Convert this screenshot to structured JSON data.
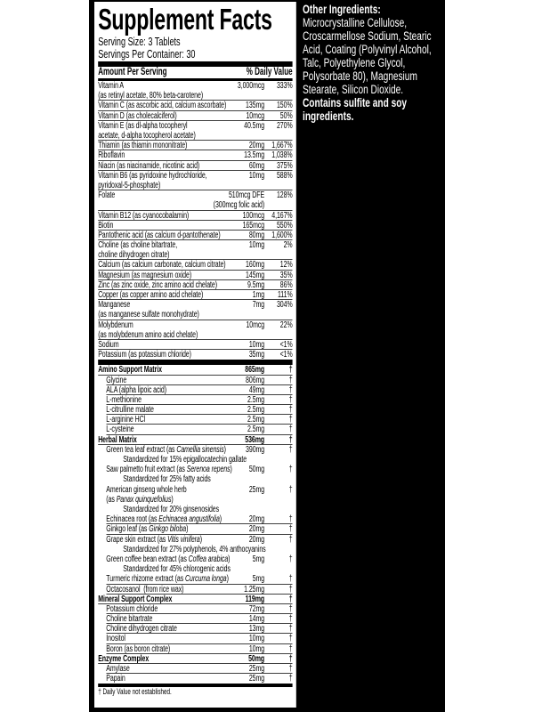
{
  "title": "Supplement Facts",
  "serving_size": "Serving Size: 3 Tablets",
  "servings_per_container": "Servings Per Container: 30",
  "header": {
    "amount": "Amount Per Serving",
    "dv": "% Daily Value"
  },
  "vitamins": [
    {
      "name": "Vitamin A\n(as retinyl acetate, 80% beta-carotene)",
      "amount": "3,000mcg",
      "dv": "333%",
      "lines": 2
    },
    {
      "name": "Vitamin C (as ascorbic acid, calcium ascorbate)",
      "amount": "135mg",
      "dv": "150%",
      "lines": 1
    },
    {
      "name": "Vitamin D (as cholecalciferol)",
      "amount": "10mcg",
      "dv": "50%",
      "lines": 1
    },
    {
      "name": "Vitamin E (as dl-alpha tocopheryl\nacetate, d-alpha tocopherol acetate)",
      "amount": "40.5mg",
      "dv": "270%",
      "lines": 2
    },
    {
      "name": "Thiamin (as thiamin mononitrate)",
      "amount": "20mg",
      "dv": "1,667%",
      "lines": 1
    },
    {
      "name": "Riboflavin",
      "amount": "13.5mg",
      "dv": "1,038%",
      "lines": 1
    },
    {
      "name": "Niacin (as niacinamide, nicotinic acid)",
      "amount": "60mg",
      "dv": "375%",
      "lines": 1
    },
    {
      "name": "Vitamin B6 (as pyridoxine hydrochloride,\npyridoxal-5-phosphate)",
      "amount": "10mg",
      "dv": "588%",
      "lines": 2
    },
    {
      "name": "Folate",
      "amount": "510mcg DFE\n(300mcg folic acid)",
      "dv": "128%",
      "lines": 2
    },
    {
      "name": "Vitamin B12 (as cyanocobalamin)",
      "amount": "100mcg",
      "dv": "4,167%",
      "lines": 1
    },
    {
      "name": "Biotin",
      "amount": "165mcg",
      "dv": "550%",
      "lines": 1
    },
    {
      "name": "Pantothenic acid (as calcium d-pantothenate)",
      "amount": "80mg",
      "dv": "1,600%",
      "lines": 1
    },
    {
      "name": "Choline (as choline bitartrate,\ncholine dihydrogen citrate)",
      "amount": "10mg",
      "dv": "2%",
      "lines": 2
    },
    {
      "name": "Calcium (as calcium carbonate, calcium citrate)",
      "amount": "160mg",
      "dv": "12%",
      "lines": 1
    },
    {
      "name": "Magnesium (as magnesium oxide)",
      "amount": "145mg",
      "dv": "35%",
      "lines": 1
    },
    {
      "name": "Zinc (as zinc oxide, zinc amino acid chelate)",
      "amount": "9.5mg",
      "dv": "86%",
      "lines": 1
    },
    {
      "name": "Copper (as copper amino acid chelate)",
      "amount": "1mg",
      "dv": "111%",
      "lines": 1
    },
    {
      "name": "Manganese\n(as manganese sulfate monohydrate)",
      "amount": "7mg",
      "dv": "304%",
      "lines": 2
    },
    {
      "name": "Molybdenum\n(as molybdenum amino acid chelate)",
      "amount": "10mcg",
      "dv": "22%",
      "lines": 2
    },
    {
      "name": "Sodium",
      "amount": "10mg",
      "dv": "<1%",
      "lines": 1
    },
    {
      "name": "Potassium (as potassium chloride)",
      "amount": "35mg",
      "dv": "<1%",
      "lines": 1
    }
  ],
  "blends": [
    {
      "type": "group",
      "name": "Amino Support Matrix",
      "amount": "865mg",
      "dv": "†"
    },
    {
      "type": "sub",
      "name": "Glycine",
      "amount": "806mg",
      "dv": "†"
    },
    {
      "type": "sub",
      "name": "ALA (alpha lipoic acid)",
      "amount": "49mg",
      "dv": "†"
    },
    {
      "type": "sub",
      "name": "L-methionine",
      "amount": "2.5mg",
      "dv": "†"
    },
    {
      "type": "sub",
      "name": "L-citrulline malate",
      "amount": "2.5mg",
      "dv": "†"
    },
    {
      "type": "sub",
      "name": "L-arginine HCl",
      "amount": "2.5mg",
      "dv": "†"
    },
    {
      "type": "sub",
      "name": "L-cysteine",
      "amount": "2.5mg",
      "dv": "†"
    },
    {
      "type": "group",
      "name": "Herbal Matrix",
      "amount": "536mg",
      "dv": "†"
    },
    {
      "type": "sub",
      "name": "Green tea leaf extract (as ",
      "italic": "Camellia sinensis",
      "name_end": ")",
      "amount": "390mg",
      "dv": "†",
      "nb": true
    },
    {
      "type": "std",
      "name": "Standardized for 15% epigallocatechin gallate"
    },
    {
      "type": "sub",
      "name": "Saw palmetto fruit extract (as ",
      "italic": "Serenoa repens",
      "name_end": ")",
      "amount": "50mg",
      "dv": "†",
      "nb": true
    },
    {
      "type": "std",
      "name": "Standardized for 25% fatty acids"
    },
    {
      "type": "sub",
      "name": "American ginseng whole herb\n(as ",
      "italic": "Panax quinquefolius",
      "name_end": ")",
      "amount": "25mg",
      "dv": "†",
      "lines": 2,
      "nb": true
    },
    {
      "type": "std",
      "name": "Standardized for 20% ginsenosides"
    },
    {
      "type": "sub",
      "name": "Echinacea root (as ",
      "italic": "Echinacea angustifolia",
      "name_end": ")",
      "amount": "20mg",
      "dv": "†"
    },
    {
      "type": "sub",
      "name": "Ginkgo leaf (as ",
      "italic": "Ginkgo biloba",
      "name_end": ")",
      "amount": "20mg",
      "dv": "†"
    },
    {
      "type": "sub",
      "name": "Grape skin extract (as ",
      "italic": "Vitis vinifera",
      "name_end": ")",
      "amount": "20mg",
      "dv": "†",
      "nb": true
    },
    {
      "type": "std",
      "name": "Standardized for 27% polyphenols, 4% anthocyanins"
    },
    {
      "type": "sub",
      "name": "Green coffee bean extract (as ",
      "italic": "Coffea arabica",
      "name_end": ")",
      "amount": "5mg",
      "dv": "†",
      "nb": true
    },
    {
      "type": "std",
      "name": "Standardized for 45% chlorogenic acids"
    },
    {
      "type": "sub",
      "name": "Turmeric rhizome extract (as ",
      "italic": "Curcuma longa",
      "name_end": ")",
      "amount": "5mg",
      "dv": "†"
    },
    {
      "type": "sub",
      "name": "Octacosanol  (from rice wax)",
      "amount": "1.25mg",
      "dv": "†"
    },
    {
      "type": "group",
      "name": "Mineral Support Complex",
      "amount": "119mg",
      "dv": "†"
    },
    {
      "type": "sub",
      "name": "Potassium chloride",
      "amount": "72mg",
      "dv": "†"
    },
    {
      "type": "sub",
      "name": "Choline bitartrate",
      "amount": "14mg",
      "dv": "†"
    },
    {
      "type": "sub",
      "name": "Choline dihydrogen citrate",
      "amount": "13mg",
      "dv": "†"
    },
    {
      "type": "sub",
      "name": "Inositol",
      "amount": "10mg",
      "dv": "†"
    },
    {
      "type": "sub",
      "name": "Boron (as boron citrate)",
      "amount": "10mg",
      "dv": "†"
    },
    {
      "type": "group",
      "name": "Enzyme Complex",
      "amount": "50mg",
      "dv": "†"
    },
    {
      "type": "sub",
      "name": "Amylase",
      "amount": "25mg",
      "dv": "†"
    },
    {
      "type": "sub",
      "name": "Papain",
      "amount": "25mg",
      "dv": "†",
      "nb": true
    }
  ],
  "footnote": "† Daily Value not established.",
  "other_ingredients": {
    "heading": "Other Ingredients:",
    "text": "Microcrystalline Cellulose, Croscarmellose Sodium, Stearic Acid, Coating (Polyvinyl Alcohol, Talc, Polyethylene Glycol, Polysorbate 80), Magnesium Stearate, Silicon Dioxide.",
    "warning": "Contains sulfite and soy ingredients."
  }
}
